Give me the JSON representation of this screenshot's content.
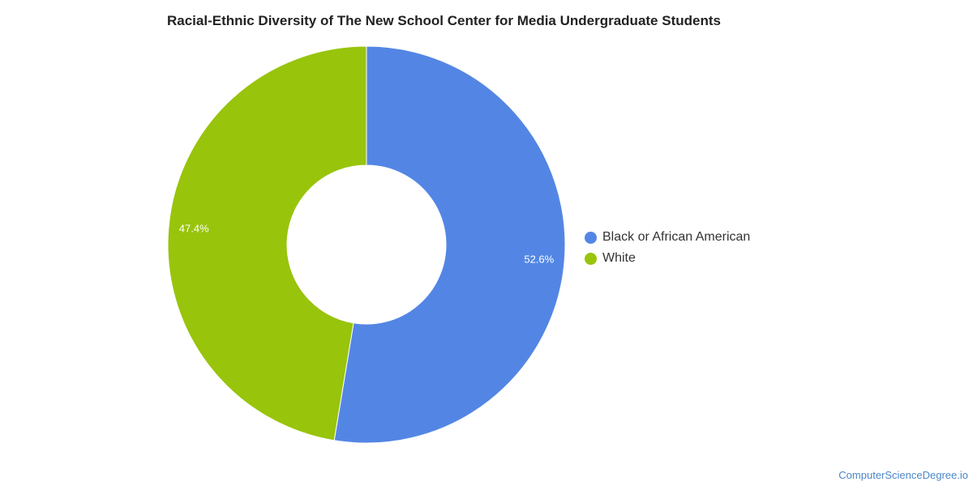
{
  "chart_data": {
    "type": "pie",
    "title": "Racial-Ethnic Diversity of The New School Center for Media Undergraduate Students",
    "donut": true,
    "legend_position": "right",
    "slices": [
      {
        "label": "Black or African American",
        "value": 52.6,
        "value_label": "52.6%",
        "color": "#5386e4"
      },
      {
        "label": "White",
        "value": 47.4,
        "value_label": "47.4%",
        "color": "#98c40c"
      }
    ]
  },
  "watermark": "ComputerScienceDegree.io"
}
